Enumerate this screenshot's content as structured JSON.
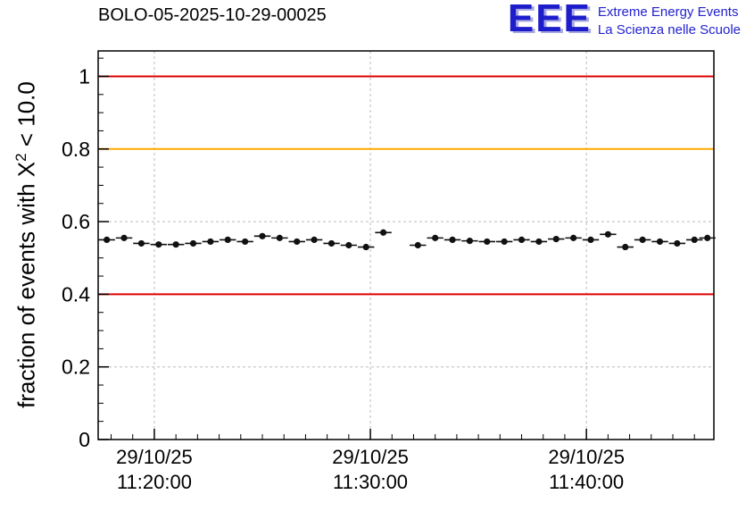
{
  "header": {
    "title": "BOLO-05-2025-10-29-00025",
    "logo": {
      "text": "EEE",
      "line1": "Extreme Energy Events",
      "line2": "La Scienza nelle Scuole",
      "color": "#2222d0"
    }
  },
  "chart_data": {
    "type": "scatter",
    "title": "BOLO-05-2025-10-29-00025",
    "ylabel": "fraction of events with X^2 < 10.0",
    "ylabel_parts": {
      "base": "fraction of events with X",
      "sup": "2",
      "rest": " < 10.0"
    },
    "xlabel": "",
    "x_unit": "minutes after 11:00:00 on 29/10/25",
    "xlim_minutes": [
      17.4,
      45.9
    ],
    "ylim": [
      0,
      1.07
    ],
    "grid": true,
    "legend": "none",
    "yticks": [
      {
        "v": 0,
        "label": "0"
      },
      {
        "v": 0.2,
        "label": "0.2"
      },
      {
        "v": 0.4,
        "label": "0.4"
      },
      {
        "v": 0.6,
        "label": "0.6"
      },
      {
        "v": 0.8,
        "label": "0.8"
      },
      {
        "v": 1,
        "label": "1"
      }
    ],
    "xticks": [
      {
        "t": 20,
        "line1": "29/10/25",
        "line2": "11:20:00"
      },
      {
        "t": 30,
        "line1": "29/10/25",
        "line2": "11:30:00"
      },
      {
        "t": 40,
        "line1": "29/10/25",
        "line2": "11:40:00"
      }
    ],
    "reference_lines": [
      {
        "y": 1.0,
        "color": "#dd0000"
      },
      {
        "y": 0.8,
        "color": "#ffaa00"
      },
      {
        "y": 0.4,
        "color": "#dd0000"
      }
    ],
    "marker_color": "#111111",
    "xerr_minutes": 0.38,
    "yerr": 0.005,
    "points": [
      [
        17.8,
        0.55
      ],
      [
        18.6,
        0.555
      ],
      [
        19.4,
        0.54
      ],
      [
        20.2,
        0.537
      ],
      [
        21.0,
        0.537
      ],
      [
        21.8,
        0.54
      ],
      [
        22.6,
        0.545
      ],
      [
        23.4,
        0.55
      ],
      [
        24.2,
        0.545
      ],
      [
        25.0,
        0.56
      ],
      [
        25.8,
        0.555
      ],
      [
        26.6,
        0.545
      ],
      [
        27.4,
        0.55
      ],
      [
        28.2,
        0.54
      ],
      [
        29.0,
        0.535
      ],
      [
        29.8,
        0.53
      ],
      [
        30.6,
        0.57
      ],
      [
        32.2,
        0.535
      ],
      [
        33.0,
        0.555
      ],
      [
        33.8,
        0.55
      ],
      [
        34.6,
        0.547
      ],
      [
        35.4,
        0.545
      ],
      [
        36.2,
        0.545
      ],
      [
        37.0,
        0.55
      ],
      [
        37.8,
        0.545
      ],
      [
        38.6,
        0.552
      ],
      [
        39.4,
        0.555
      ],
      [
        40.2,
        0.55
      ],
      [
        41.0,
        0.565
      ],
      [
        41.8,
        0.53
      ],
      [
        42.6,
        0.55
      ],
      [
        43.4,
        0.545
      ],
      [
        44.2,
        0.54
      ],
      [
        45.0,
        0.55
      ],
      [
        45.6,
        0.555
      ]
    ]
  }
}
